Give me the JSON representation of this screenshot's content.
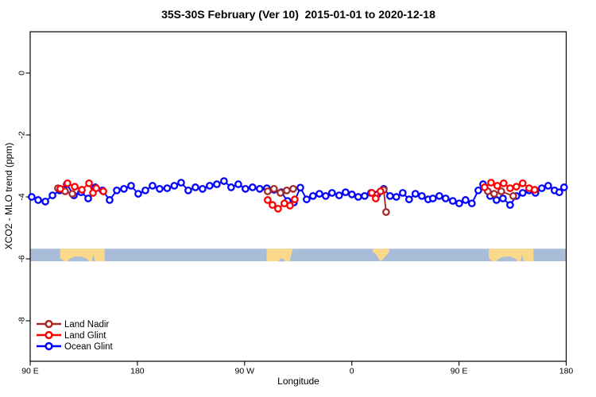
{
  "chart_data": {
    "type": "scatter",
    "title": "35S-30S February (Ver 10)  2015-01-01 to 2020-12-18",
    "xlabel": "Longitude",
    "ylabel": "XCO2 - MLO trend (ppm)",
    "grid": false,
    "x_axis": {
      "note": "longitude axis wraps eastward starting at 90E; axis units run 90..540",
      "range": [
        90,
        540
      ],
      "ticks": [
        {
          "axis_value": 90,
          "label": "90 E"
        },
        {
          "axis_value": 180,
          "label": "180"
        },
        {
          "axis_value": 270,
          "label": "90 W"
        },
        {
          "axis_value": 360,
          "label": "0"
        },
        {
          "axis_value": 450,
          "label": "90 E"
        },
        {
          "axis_value": 540,
          "label": "180"
        }
      ]
    },
    "y_axis": {
      "range": [
        -9.3,
        1.35
      ],
      "ticks": [
        {
          "value": 0,
          "label": "0"
        },
        {
          "value": -2,
          "label": "-2"
        },
        {
          "value": -4,
          "label": "-4"
        },
        {
          "value": -6,
          "label": "-6"
        },
        {
          "value": -8,
          "label": "-8"
        }
      ]
    },
    "legend": {
      "position": "bottom-left",
      "items": [
        {
          "label": "Land Nadir",
          "color": "#A52A2A"
        },
        {
          "label": "Land Glint",
          "color": "#FF0000"
        },
        {
          "label": "Ocean Glint",
          "color": "#0000FF"
        }
      ]
    },
    "map_strip": {
      "description": "35S-30S latitude band land/ocean strip",
      "y_top_value": -5.67,
      "y_bottom_value": -6.08,
      "ocean_color": "#A9BDD9",
      "land_color": "#FBD98B",
      "land_regions": [
        {
          "name": "australia",
          "axis_range": [
            115.0,
            152.5
          ]
        },
        {
          "name": "south-america",
          "axis_range": [
            288.5,
            310.5
          ]
        },
        {
          "name": "south-africa",
          "axis_range": [
            377.5,
            391.5
          ]
        },
        {
          "name": "australia-repeat",
          "axis_range": [
            475.0,
            512.5
          ]
        }
      ]
    },
    "series": [
      {
        "name": "Ocean Glint",
        "color": "#0000FF",
        "clusters": [
          [
            [
              91.3,
              -4.0
            ],
            [
              96.7,
              -4.1
            ],
            [
              102.7,
              -4.15
            ],
            [
              108.7,
              -3.95
            ],
            [
              114.7,
              -3.79
            ],
            [
              120.7,
              -3.59
            ],
            [
              126.7,
              -3.95
            ],
            [
              132.7,
              -3.85
            ],
            [
              138.7,
              -4.05
            ],
            [
              144.7,
              -3.69
            ],
            [
              150.7,
              -3.79
            ],
            [
              156.7,
              -4.1
            ],
            [
              162.7,
              -3.79
            ],
            [
              168.7,
              -3.74
            ],
            [
              174.7,
              -3.64
            ],
            [
              180.7,
              -3.9
            ],
            [
              186.7,
              -3.79
            ],
            [
              192.7,
              -3.64
            ],
            [
              198.7,
              -3.74
            ],
            [
              205.0,
              -3.72
            ],
            [
              211.0,
              -3.64
            ],
            [
              216.7,
              -3.54
            ],
            [
              222.7,
              -3.79
            ],
            [
              228.7,
              -3.69
            ],
            [
              234.7,
              -3.74
            ],
            [
              240.7,
              -3.64
            ],
            [
              246.7,
              -3.59
            ],
            [
              252.7,
              -3.49
            ],
            [
              258.7,
              -3.69
            ],
            [
              264.7,
              -3.59
            ],
            [
              270.7,
              -3.74
            ],
            [
              276.7,
              -3.69
            ],
            [
              282.7,
              -3.74
            ],
            [
              288.7,
              -3.72
            ],
            [
              294.7,
              -3.77
            ],
            [
              300.7,
              -3.85
            ],
            [
              306.1,
              -4.13
            ],
            [
              311.4,
              -4.18
            ],
            [
              316.8,
              -3.7
            ],
            [
              322.1,
              -4.08
            ],
            [
              327.4,
              -3.97
            ],
            [
              332.8,
              -3.9
            ],
            [
              338.1,
              -3.97
            ],
            [
              343.4,
              -3.87
            ],
            [
              349.4,
              -3.95
            ],
            [
              354.8,
              -3.85
            ],
            [
              360.1,
              -3.92
            ],
            [
              365.4,
              -4.0
            ],
            [
              370.8,
              -3.97
            ],
            [
              376.1,
              -3.87
            ],
            [
              381.4,
              -3.92
            ],
            [
              386.8,
              -3.74
            ],
            [
              392.1,
              -3.97
            ],
            [
              397.4,
              -4.0
            ],
            [
              402.8,
              -3.87
            ],
            [
              408.1,
              -4.08
            ],
            [
              413.4,
              -3.9
            ],
            [
              418.8,
              -3.97
            ],
            [
              424.1,
              -4.08
            ],
            [
              428.1,
              -4.05
            ],
            [
              433.5,
              -3.97
            ],
            [
              438.8,
              -4.05
            ],
            [
              444.8,
              -4.13
            ],
            [
              450.2,
              -4.21
            ],
            [
              455.5,
              -4.1
            ],
            [
              460.8,
              -4.21
            ],
            [
              466.2,
              -3.79
            ],
            [
              470.2,
              -3.59
            ],
            [
              476.2,
              -3.97
            ],
            [
              481.5,
              -4.1
            ],
            [
              486.9,
              -4.05
            ],
            [
              492.9,
              -4.26
            ],
            [
              498.2,
              -3.97
            ],
            [
              503.5,
              -3.87
            ],
            [
              508.9,
              -3.79
            ],
            [
              514.2,
              -3.87
            ],
            [
              519.5,
              -3.72
            ],
            [
              524.9,
              -3.64
            ],
            [
              530.2,
              -3.79
            ],
            [
              534.2,
              -3.85
            ],
            [
              538.2,
              -3.69
            ]
          ]
        ]
      },
      {
        "name": "Land Nadir",
        "color": "#A52A2A",
        "clusters": [
          [
            [
              113.3,
              -3.72
            ],
            [
              119.3,
              -3.82
            ],
            [
              125.4,
              -3.9
            ]
          ],
          [
            [
              289.4,
              -3.82
            ],
            [
              294.7,
              -3.74
            ],
            [
              300.1,
              -3.87
            ],
            [
              305.4,
              -3.79
            ],
            [
              310.8,
              -3.74
            ]
          ],
          [
            [
              386.8,
              -3.77
            ],
            [
              388.8,
              -4.49
            ]
          ],
          [
            [
              474.2,
              -3.82
            ],
            [
              479.5,
              -3.9
            ],
            [
              485.5,
              -3.82
            ],
            [
              495.5,
              -3.97
            ]
          ]
        ]
      },
      {
        "name": "Land Glint",
        "color": "#FF0000",
        "clusters": [
          [
            [
              115.3,
              -3.74
            ],
            [
              121.3,
              -3.56
            ],
            [
              127.4,
              -3.67
            ],
            [
              133.4,
              -3.77
            ],
            [
              139.4,
              -3.56
            ],
            [
              142.7,
              -3.87
            ],
            [
              145.4,
              -3.72
            ],
            [
              151.4,
              -3.82
            ]
          ],
          [
            [
              289.4,
              -4.1
            ],
            [
              293.4,
              -4.26
            ],
            [
              298.1,
              -4.38
            ],
            [
              303.4,
              -4.21
            ],
            [
              308.1,
              -4.28
            ],
            [
              312.1,
              -4.08
            ]
          ],
          [
            [
              376.8,
              -3.87
            ],
            [
              380.1,
              -4.05
            ],
            [
              384.1,
              -3.82
            ]
          ],
          [
            [
              471.5,
              -3.69
            ],
            [
              476.9,
              -3.54
            ],
            [
              482.2,
              -3.64
            ],
            [
              487.5,
              -3.56
            ],
            [
              492.9,
              -3.72
            ],
            [
              498.2,
              -3.67
            ],
            [
              503.5,
              -3.56
            ],
            [
              508.9,
              -3.72
            ],
            [
              513.5,
              -3.77
            ]
          ]
        ]
      }
    ]
  }
}
